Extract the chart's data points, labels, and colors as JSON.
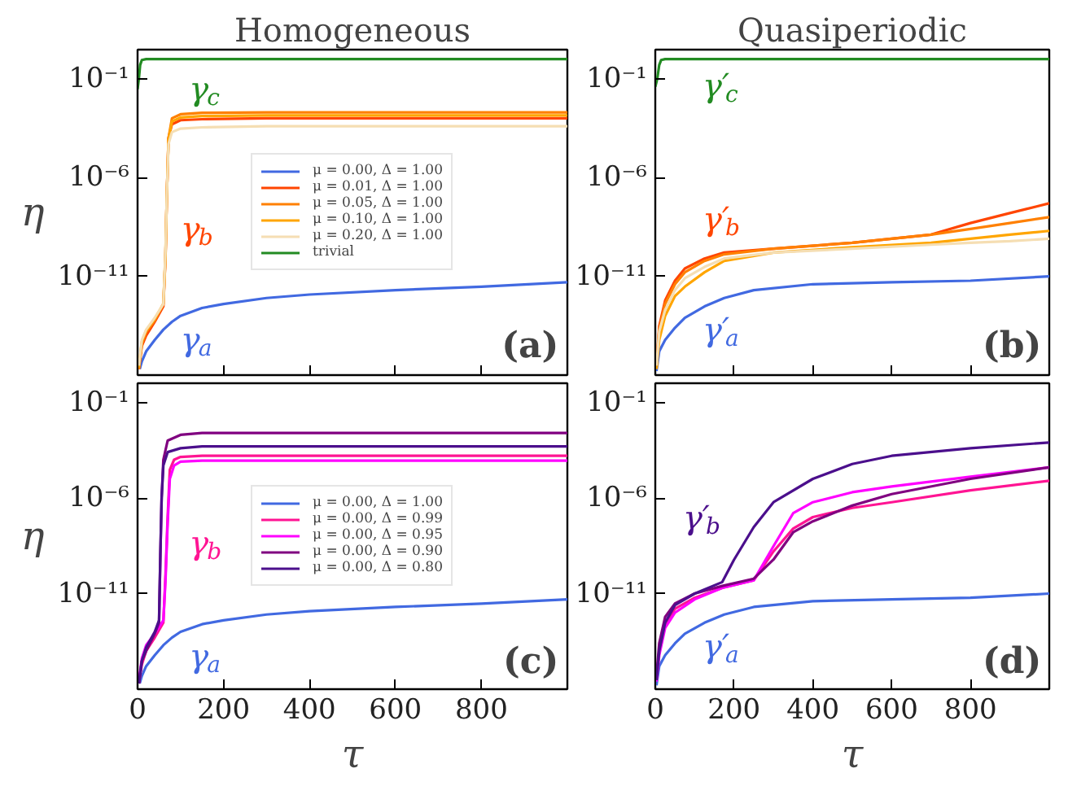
{
  "chart_data": [
    {
      "type": "line",
      "title": "Homogeneous",
      "ylabel": "η",
      "log": true,
      "xlim": [
        0,
        1000
      ],
      "ylim": [
        1e-16,
        3
      ],
      "xticks": [
        0,
        200,
        400,
        600,
        800
      ],
      "yticks": [
        {
          "value": 0.1,
          "label": "10⁻¹"
        },
        {
          "value": 1e-06,
          "label": "10⁻⁶"
        },
        {
          "value": 1e-11,
          "label": "10⁻¹¹"
        }
      ],
      "tick_labels": "y",
      "grid": false,
      "legend": "center",
      "series": [
        {
          "name": "μ = 0.00, Δ = 1.00",
          "color": "#4169e1",
          "x": [
            5,
            10,
            20,
            40,
            60,
            80,
            100,
            150,
            200,
            300,
            400,
            600,
            800,
            1000
          ],
          "values": [
            2e-16,
            5e-16,
            1.6e-15,
            6e-15,
            2e-14,
            5e-14,
            1e-13,
            2.5e-13,
            4e-13,
            8e-13,
            1.2e-12,
            2e-12,
            3e-12,
            5e-12
          ]
        },
        {
          "name": "μ = 0.01, Δ = 1.00",
          "color": "#ff4500",
          "x": [
            3,
            10,
            20,
            40,
            60,
            65,
            68,
            72,
            80,
            100,
            150,
            300,
            1000
          ],
          "values": [
            2e-16,
            3e-15,
            1e-14,
            5e-14,
            3e-13,
            1e-10,
            1e-07,
            0.0001,
            0.0005,
            0.0008,
            0.0009,
            0.001,
            0.001
          ]
        },
        {
          "name": "μ = 0.05, Δ = 1.00",
          "color": "#ff8000",
          "x": [
            3,
            10,
            20,
            40,
            60,
            65,
            68,
            72,
            80,
            100,
            150,
            300,
            1000
          ],
          "values": [
            2e-16,
            4e-15,
            1.5e-14,
            6e-14,
            4e-13,
            1e-10,
            1e-07,
            0.0001,
            0.001,
            0.0016,
            0.0019,
            0.002,
            0.002
          ]
        },
        {
          "name": "μ = 0.10, Δ = 1.00",
          "color": "#ffa500",
          "x": [
            3,
            10,
            20,
            40,
            60,
            65,
            68,
            72,
            80,
            100,
            150,
            300,
            1000
          ],
          "values": [
            2.5e-16,
            5e-15,
            1.8e-14,
            7e-14,
            4e-13,
            1.5e-10,
            1e-07,
            8e-05,
            0.0007,
            0.0011,
            0.0013,
            0.0014,
            0.0014
          ]
        },
        {
          "name": "μ = 0.20, Δ = 1.00",
          "color": "#f5deb3",
          "x": [
            3,
            10,
            20,
            40,
            60,
            65,
            68,
            72,
            80,
            100,
            150,
            300,
            1000
          ],
          "values": [
            3e-16,
            6e-15,
            2e-14,
            8e-14,
            4e-13,
            2e-10,
            1e-07,
            5e-05,
            0.0002,
            0.0003,
            0.00035,
            0.0004,
            0.0004
          ]
        },
        {
          "name": "trivial",
          "color": "#228b22",
          "x": [
            0,
            3,
            6,
            10,
            20,
            1000
          ],
          "values": [
            0.03,
            0.1,
            0.5,
            0.9,
            1,
            1
          ]
        }
      ],
      "annotations": [
        "γ$_{c}$",
        "γ$_{b}$",
        "γ$_{a}$",
        "(a)"
      ]
    },
    {
      "type": "line",
      "title": "Quasiperiodic",
      "log": true,
      "xlim": [
        0,
        1000
      ],
      "ylim": [
        1e-16,
        3
      ],
      "xticks": [
        0,
        200,
        400,
        600,
        800
      ],
      "yticks": [
        {
          "value": 0.1,
          "label": "10⁻¹"
        },
        {
          "value": 1e-06,
          "label": "10⁻⁶"
        },
        {
          "value": 1e-11,
          "label": "10⁻¹¹"
        }
      ],
      "tick_labels": "y",
      "grid": false,
      "series": [
        {
          "color": "#4169e1",
          "x": [
            3,
            10,
            25,
            50,
            75,
            125,
            175,
            250,
            400,
            600,
            800,
            1000
          ],
          "values": [
            1.6e-16,
            1.6e-15,
            6e-15,
            2.5e-14,
            8e-14,
            3e-13,
            8e-13,
            2e-12,
            4e-12,
            5e-12,
            6e-12,
            1e-11
          ]
        },
        {
          "color": "#ff4500",
          "x": [
            3,
            10,
            25,
            50,
            75,
            125,
            175,
            300,
            500,
            700,
            800,
            900,
            1000
          ],
          "values": [
            3e-16,
            3e-14,
            6e-13,
            6e-12,
            2.5e-11,
            8e-11,
            1.6e-10,
            2.5e-10,
            5e-10,
            1.3e-09,
            5e-09,
            1.6e-08,
            5e-08
          ]
        },
        {
          "color": "#ff8000",
          "x": [
            3,
            10,
            25,
            50,
            75,
            125,
            175,
            300,
            500,
            700,
            800,
            900,
            1000
          ],
          "values": [
            2.5e-16,
            2e-14,
            4e-13,
            4e-12,
            1.6e-11,
            6e-11,
            1.3e-10,
            2.5e-10,
            5e-10,
            1.3e-09,
            2.5e-09,
            5e-09,
            1e-08
          ]
        },
        {
          "color": "#ffa500",
          "x": [
            3,
            10,
            25,
            50,
            75,
            125,
            175,
            300,
            500,
            700,
            800,
            900,
            1000
          ],
          "values": [
            2e-16,
            6e-15,
            1e-13,
            1e-12,
            3e-12,
            1.6e-11,
            6e-11,
            1.6e-10,
            3e-10,
            5e-10,
            8e-10,
            1.3e-09,
            2e-09
          ]
        },
        {
          "color": "#f5deb3",
          "x": [
            3,
            10,
            25,
            50,
            75,
            125,
            175,
            300,
            500,
            700,
            800,
            900,
            1000
          ],
          "values": [
            3e-16,
            1.6e-14,
            2e-13,
            2e-12,
            8e-12,
            3e-11,
            8e-11,
            1.6e-10,
            2.5e-10,
            4e-10,
            5e-10,
            6e-10,
            8e-10
          ]
        },
        {
          "color": "#228b22",
          "x": [
            0,
            5,
            10,
            15,
            25,
            1000
          ],
          "values": [
            0.04,
            0.1,
            0.5,
            0.9,
            1,
            1
          ]
        }
      ],
      "annotations": [
        "γ′$_{c}$",
        "γ′$_{b}$",
        "γ′$_{a}$",
        "(b)"
      ]
    },
    {
      "type": "line",
      "xlabel": "τ",
      "ylabel": "η",
      "log": true,
      "xlim": [
        0,
        1000
      ],
      "ylim": [
        1e-16,
        1
      ],
      "xticks": [
        0,
        200,
        400,
        600,
        800
      ],
      "yticks": [
        {
          "value": 0.1,
          "label": "10⁻¹"
        },
        {
          "value": 1e-06,
          "label": "10⁻⁶"
        },
        {
          "value": 1e-11,
          "label": "10⁻¹¹"
        }
      ],
      "grid": false,
      "legend": "center",
      "series": [
        {
          "name": "μ = 0.00, Δ = 1.00",
          "color": "#4169e1",
          "x": [
            5,
            10,
            20,
            40,
            60,
            80,
            100,
            150,
            200,
            300,
            400,
            600,
            800,
            1000
          ],
          "values": [
            2e-16,
            5e-16,
            1.6e-15,
            6e-15,
            2e-14,
            5e-14,
            1e-13,
            2.5e-13,
            4e-13,
            8e-13,
            1.2e-12,
            2e-12,
            3e-12,
            5e-12
          ]
        },
        {
          "name": "μ = 0.00, Δ = 0.99",
          "color": "#ff1493",
          "x": [
            3,
            10,
            20,
            40,
            60,
            65,
            70,
            75,
            85,
            100,
            150,
            300,
            1000
          ],
          "values": [
            2e-16,
            2e-15,
            1e-14,
            5e-14,
            3e-13,
            1e-10,
            1e-07,
            3e-05,
            0.0001,
            0.00014,
            0.00016,
            0.00016,
            0.00016
          ]
        },
        {
          "name": "μ = 0.00, Δ = 0.95",
          "color": "#ff00ff",
          "x": [
            3,
            10,
            20,
            40,
            60,
            65,
            70,
            75,
            85,
            100,
            150,
            300,
            1000
          ],
          "values": [
            3e-16,
            4e-15,
            2e-14,
            8e-14,
            4e-13,
            5e-11,
            5e-08,
            1e-05,
            5e-05,
            8e-05,
            9e-05,
            9e-05,
            9e-05
          ]
        },
        {
          "name": "μ = 0.00, Δ = 0.90",
          "color": "#800080",
          "x": [
            3,
            10,
            20,
            40,
            50,
            53,
            56,
            60,
            70,
            100,
            150,
            300,
            1000
          ],
          "values": [
            2e-16,
            3e-15,
            1e-14,
            8e-14,
            3e-13,
            1e-09,
            1e-06,
            0.0001,
            0.001,
            0.002,
            0.0025,
            0.0025,
            0.0025
          ]
        },
        {
          "name": "μ = 0.00, Δ = 0.80",
          "color": "#4b0f8c",
          "x": [
            3,
            10,
            20,
            40,
            50,
            53,
            56,
            60,
            70,
            100,
            150,
            300,
            1000
          ],
          "values": [
            2e-16,
            3e-15,
            1.5e-14,
            1e-13,
            4e-13,
            1e-09,
            1e-06,
            5e-05,
            0.00025,
            0.0004,
            0.0005,
            0.0005,
            0.0005
          ]
        }
      ],
      "annotations": [
        "γ$_{b}$",
        "γ$_{a}$",
        "(c)"
      ]
    },
    {
      "type": "line",
      "xlabel": "τ",
      "log": true,
      "xlim": [
        0,
        1000
      ],
      "ylim": [
        1e-16,
        1
      ],
      "xticks": [
        0,
        200,
        400,
        600,
        800
      ],
      "yticks": [
        {
          "value": 0.1,
          "label": "10⁻¹"
        },
        {
          "value": 1e-06,
          "label": "10⁻⁶"
        },
        {
          "value": 1e-11,
          "label": "10⁻¹¹"
        }
      ],
      "grid": false,
      "series": [
        {
          "color": "#4169e1",
          "x": [
            3,
            10,
            25,
            50,
            75,
            125,
            175,
            250,
            400,
            600,
            800,
            1000
          ],
          "values": [
            1.6e-16,
            1.6e-15,
            6e-15,
            2.5e-14,
            8e-14,
            3e-13,
            8e-13,
            2e-12,
            4e-12,
            5e-12,
            6e-12,
            1e-11
          ]
        },
        {
          "color": "#ff1493",
          "x": [
            3,
            10,
            25,
            50,
            100,
            170,
            250,
            300,
            350,
            400,
            500,
            600,
            800,
            1000
          ],
          "values": [
            3e-16,
            1e-14,
            2.5e-13,
            1.6e-12,
            6e-12,
            2e-11,
            5e-11,
            1.6e-09,
            2.5e-08,
            1e-07,
            3e-07,
            6e-07,
            2.5e-06,
            8e-06
          ]
        },
        {
          "color": "#ff00ff",
          "x": [
            3,
            10,
            25,
            50,
            100,
            170,
            250,
            300,
            350,
            400,
            500,
            600,
            800,
            1000
          ],
          "values": [
            2.5e-16,
            6e-15,
            1.6e-13,
            1e-12,
            5e-12,
            2e-11,
            5e-11,
            3e-09,
            1.6e-07,
            6e-07,
            2e-06,
            4e-06,
            1.3e-05,
            4e-05
          ]
        },
        {
          "color": "#800080",
          "x": [
            3,
            10,
            25,
            50,
            100,
            170,
            250,
            300,
            350,
            400,
            500,
            600,
            800,
            1000
          ],
          "values": [
            5e-16,
            2.5e-14,
            6e-13,
            3e-12,
            1e-11,
            2.5e-11,
            6e-11,
            6e-10,
            1.6e-08,
            6e-08,
            4e-07,
            1.6e-06,
            1e-05,
            4e-05
          ]
        },
        {
          "color": "#4b0f8c",
          "x": [
            3,
            10,
            25,
            50,
            100,
            170,
            200,
            250,
            300,
            400,
            500,
            600,
            800,
            1000
          ],
          "values": [
            3e-16,
            1e-14,
            3e-13,
            2.5e-12,
            1e-11,
            4e-11,
            6e-10,
            3e-08,
            6e-07,
            1e-05,
            6e-05,
            0.00016,
            0.0004,
            0.0008
          ]
        }
      ],
      "annotations": [
        "γ′$_{b}$",
        "γ′$_{a}$",
        "(d)"
      ]
    }
  ]
}
